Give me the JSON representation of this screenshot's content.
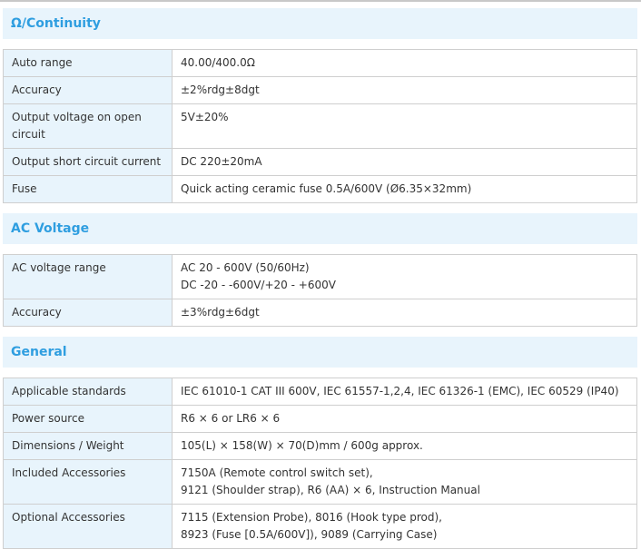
{
  "sections": [
    {
      "title": "Ω/Continuity",
      "rows": [
        {
          "label": "Auto range",
          "value": [
            "40.00/400.0Ω"
          ]
        },
        {
          "label": "Accuracy",
          "value": [
            "±2%rdg±8dgt"
          ]
        },
        {
          "label": "Output voltage on open circuit",
          "value": [
            "5V±20%"
          ]
        },
        {
          "label": "Output short circuit current",
          "value": [
            "DC 220±20mA"
          ]
        },
        {
          "label": "Fuse",
          "value": [
            "Quick acting ceramic fuse 0.5A/600V (Ø6.35×32mm)"
          ]
        }
      ]
    },
    {
      "title": "AC Voltage",
      "rows": [
        {
          "label": "AC voltage range",
          "value": [
            "AC 20 - 600V (50/60Hz)",
            "DC -20 - -600V/+20 - +600V"
          ]
        },
        {
          "label": "Accuracy",
          "value": [
            "±3%rdg±6dgt"
          ]
        }
      ]
    },
    {
      "title": "General",
      "rows": [
        {
          "label": "Applicable standards",
          "value": [
            "IEC 61010-1 CAT III 600V, IEC 61557-1,2,4, IEC 61326-1 (EMC), IEC 60529 (IP40)"
          ]
        },
        {
          "label": "Power source",
          "value": [
            "R6 × 6 or LR6 × 6"
          ]
        },
        {
          "label": "Dimensions / Weight",
          "value": [
            "105(L) × 158(W) × 70(D)mm / 600g approx."
          ]
        },
        {
          "label": "Included Accessories",
          "value": [
            "7150A (Remote control switch set),",
            "9121 (Shoulder strap), R6 (AA) × 6, Instruction Manual"
          ]
        },
        {
          "label": "Optional Accessories",
          "value": [
            "7115 (Extension Probe), 8016 (Hook type prod),",
            "8923 (Fuse [0.5A/600V]), 9089 (Carrying Case)"
          ]
        }
      ]
    }
  ],
  "colors": {
    "header_bg": "#e8f4fc",
    "header_text": "#2f9ee0",
    "border": "#cfcfcf"
  }
}
